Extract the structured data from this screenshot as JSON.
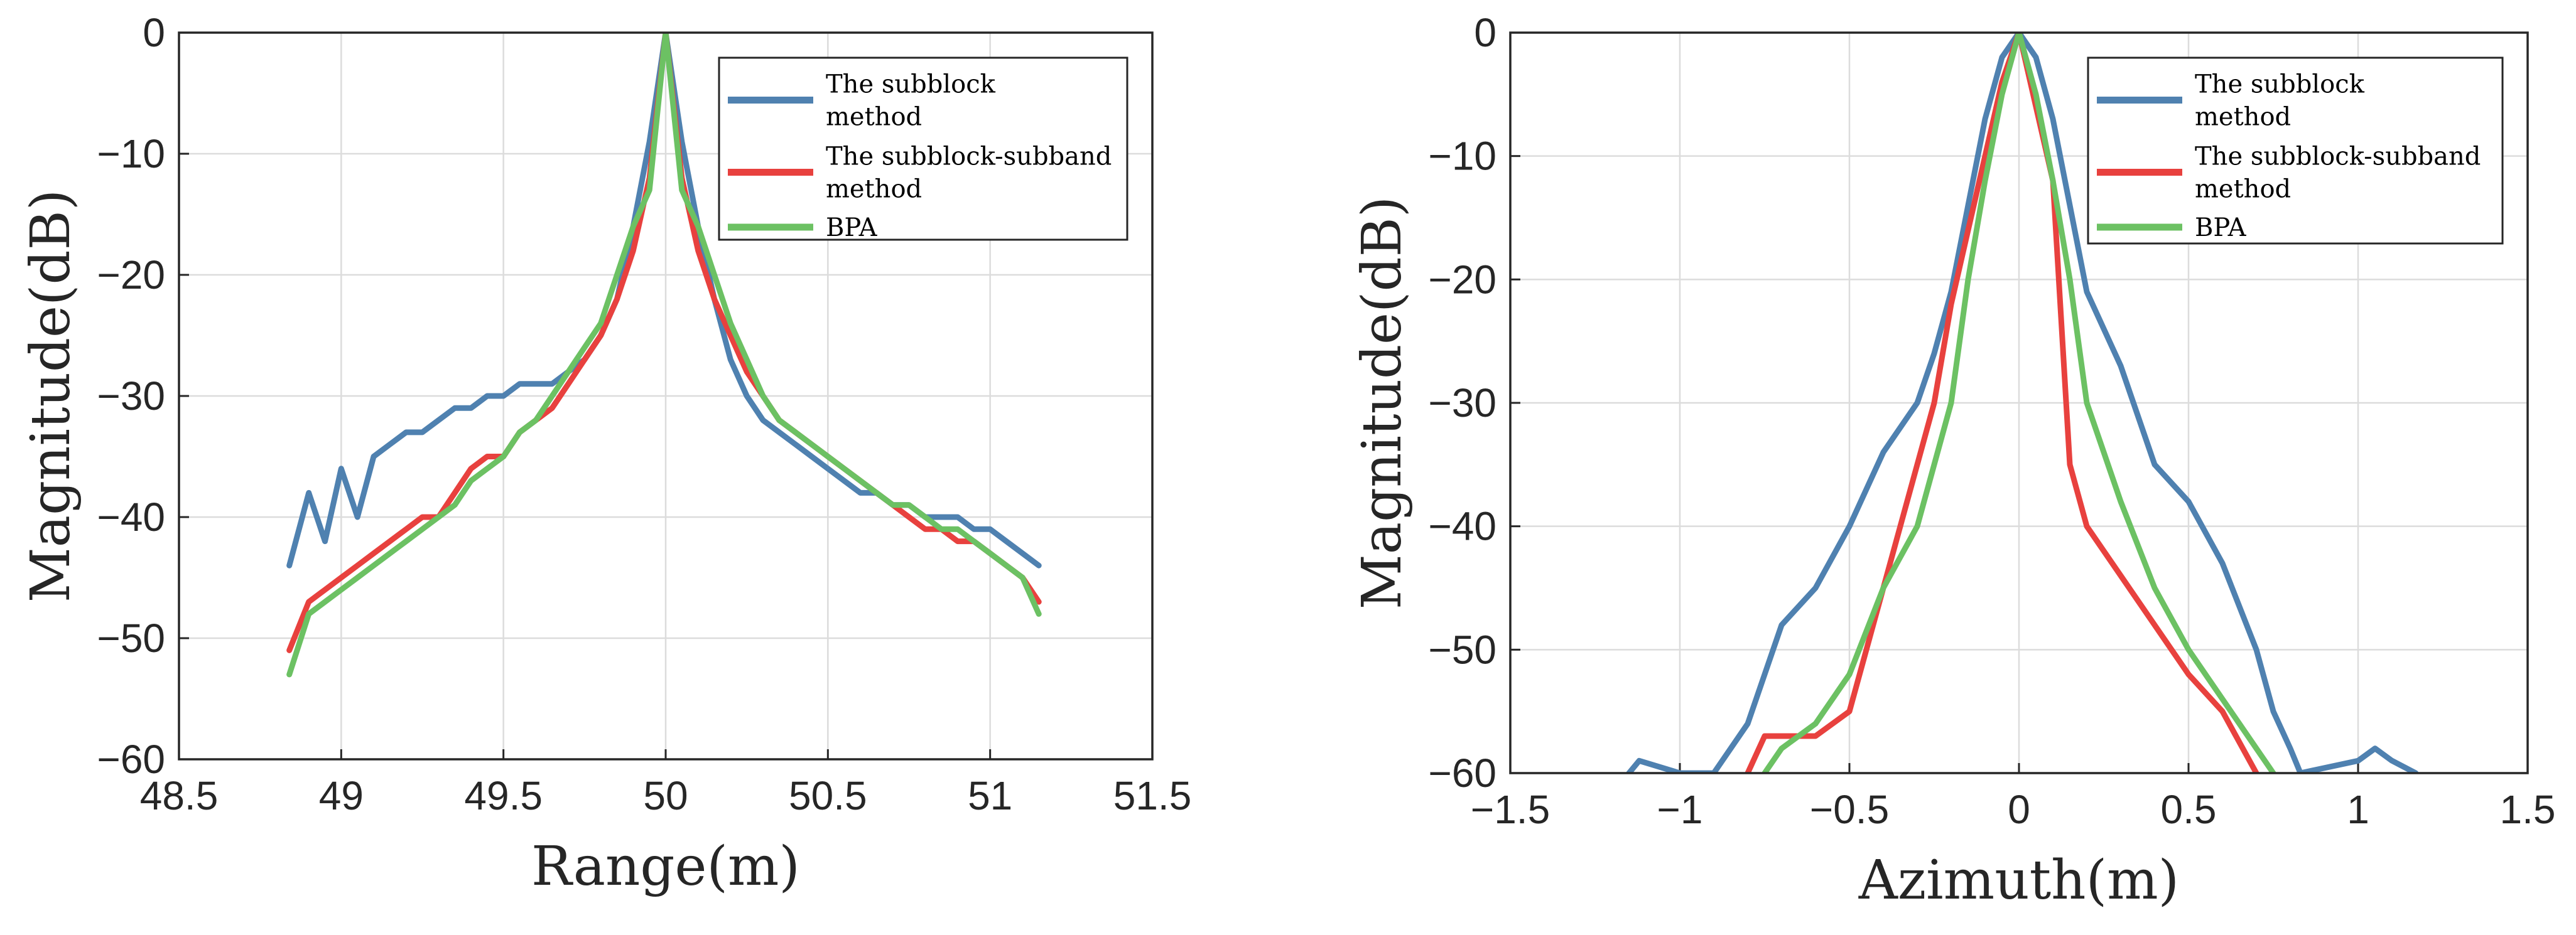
{
  "chart_data": [
    {
      "id": "range",
      "type": "line",
      "title": "",
      "xlabel": "Range(m)",
      "ylabel": "Magnitude(dB)",
      "xlim": [
        48.5,
        51.5
      ],
      "ylim": [
        -60,
        0
      ],
      "xticks": [
        "48.5",
        "49",
        "49.5",
        "50",
        "50.5",
        "51",
        "51.5"
      ],
      "yticks": [
        "0",
        "−10",
        "−20",
        "−30",
        "−40",
        "−50",
        "−60"
      ],
      "grid": true,
      "legend_position": "top-right",
      "series": [
        {
          "name": "The subblock method",
          "color": "#4f81b0",
          "x": [
            48.84,
            48.9,
            48.95,
            49.0,
            49.05,
            49.1,
            49.15,
            49.2,
            49.25,
            49.3,
            49.35,
            49.4,
            49.45,
            49.5,
            49.55,
            49.6,
            49.65,
            49.7,
            49.75,
            49.8,
            49.85,
            49.9,
            49.95,
            50.0,
            50.05,
            50.1,
            50.15,
            50.2,
            50.25,
            50.3,
            50.35,
            50.4,
            50.45,
            50.5,
            50.55,
            50.6,
            50.65,
            50.7,
            50.75,
            50.8,
            50.85,
            50.9,
            50.95,
            51.0,
            51.05,
            51.1,
            51.15
          ],
          "y": [
            -44,
            -38,
            -42,
            -36,
            -40,
            -35,
            -34,
            -33,
            -33,
            -32,
            -31,
            -31,
            -30,
            -30,
            -29,
            -29,
            -29,
            -28,
            -27,
            -25,
            -22,
            -16,
            -9,
            0,
            -9,
            -16,
            -22,
            -27,
            -30,
            -32,
            -33,
            -34,
            -35,
            -36,
            -37,
            -38,
            -38,
            -39,
            -39,
            -40,
            -40,
            -40,
            -41,
            -41,
            -42,
            -43,
            -44
          ]
        },
        {
          "name": "The subblock-subband method",
          "color": "#e8413e",
          "x": [
            48.84,
            48.9,
            48.95,
            49.0,
            49.05,
            49.1,
            49.15,
            49.2,
            49.25,
            49.3,
            49.35,
            49.4,
            49.45,
            49.5,
            49.55,
            49.6,
            49.65,
            49.7,
            49.75,
            49.8,
            49.85,
            49.9,
            49.95,
            50.0,
            50.05,
            50.1,
            50.15,
            50.2,
            50.25,
            50.3,
            50.35,
            50.4,
            50.45,
            50.5,
            50.55,
            50.6,
            50.65,
            50.7,
            50.75,
            50.8,
            50.85,
            50.9,
            50.95,
            51.0,
            51.05,
            51.1,
            51.15
          ],
          "y": [
            -51,
            -47,
            -46,
            -45,
            -44,
            -43,
            -42,
            -41,
            -40,
            -40,
            -38,
            -36,
            -35,
            -35,
            -33,
            -32,
            -31,
            -29,
            -27,
            -25,
            -22,
            -18,
            -12,
            0,
            -12,
            -18,
            -22,
            -25,
            -28,
            -30,
            -32,
            -33,
            -34,
            -35,
            -36,
            -37,
            -38,
            -39,
            -40,
            -41,
            -41,
            -42,
            -42,
            -43,
            -44,
            -45,
            -47
          ]
        },
        {
          "name": "BPA",
          "color": "#6cc163",
          "x": [
            48.84,
            48.9,
            48.95,
            49.0,
            49.05,
            49.1,
            49.15,
            49.2,
            49.25,
            49.3,
            49.35,
            49.4,
            49.45,
            49.5,
            49.55,
            49.6,
            49.65,
            49.7,
            49.75,
            49.8,
            49.85,
            49.9,
            49.95,
            50.0,
            50.05,
            50.1,
            50.15,
            50.2,
            50.25,
            50.3,
            50.35,
            50.4,
            50.45,
            50.5,
            50.55,
            50.6,
            50.65,
            50.7,
            50.75,
            50.8,
            50.85,
            50.9,
            50.95,
            51.0,
            51.05,
            51.1,
            51.15
          ],
          "y": [
            -53,
            -48,
            -47,
            -46,
            -45,
            -44,
            -43,
            -42,
            -41,
            -40,
            -39,
            -37,
            -36,
            -35,
            -33,
            -32,
            -30,
            -28,
            -26,
            -24,
            -20,
            -16,
            -13,
            0,
            -13,
            -16,
            -20,
            -24,
            -27,
            -30,
            -32,
            -33,
            -34,
            -35,
            -36,
            -37,
            -38,
            -39,
            -39,
            -40,
            -41,
            -41,
            -42,
            -43,
            -44,
            -45,
            -48
          ]
        }
      ]
    },
    {
      "id": "azimuth",
      "type": "line",
      "title": "",
      "xlabel": "Azimuth(m)",
      "ylabel": "Magnitude(dB)",
      "xlim": [
        -1.5,
        1.5
      ],
      "ylim": [
        -60,
        0
      ],
      "xticks": [
        "−1.5",
        "−1",
        "−0.5",
        "0",
        "0.5",
        "1",
        "1.5"
      ],
      "yticks": [
        "0",
        "−10",
        "−20",
        "−30",
        "−40",
        "−50",
        "−60"
      ],
      "grid": true,
      "legend_position": "top-right",
      "series": [
        {
          "name": "The subblock method",
          "color": "#4f81b0",
          "x": [
            -1.15,
            -1.12,
            -1.0,
            -0.9,
            -0.8,
            -0.75,
            -0.7,
            -0.6,
            -0.5,
            -0.4,
            -0.3,
            -0.25,
            -0.2,
            -0.15,
            -0.1,
            -0.05,
            0.0,
            0.05,
            0.1,
            0.15,
            0.2,
            0.3,
            0.4,
            0.5,
            0.6,
            0.7,
            0.75,
            0.8,
            0.83,
            1.0,
            1.05,
            1.1,
            1.17
          ],
          "y": [
            -60,
            -59,
            -60,
            -60,
            -56,
            -52,
            -48,
            -45,
            -40,
            -34,
            -30,
            -26,
            -21,
            -14,
            -7,
            -2,
            0,
            -2,
            -7,
            -14,
            -21,
            -27,
            -35,
            -38,
            -43,
            -50,
            -55,
            -58,
            -60,
            -59,
            -58,
            -59,
            -60
          ]
        },
        {
          "name": "The subblock-subband method",
          "color": "#e8413e",
          "x": [
            -0.8,
            -0.75,
            -0.6,
            -0.5,
            -0.4,
            -0.3,
            -0.25,
            -0.2,
            -0.15,
            -0.1,
            -0.05,
            0.0,
            0.05,
            0.1,
            0.15,
            0.2,
            0.3,
            0.4,
            0.5,
            0.6,
            0.7
          ],
          "y": [
            -60,
            -57,
            -57,
            -55,
            -45,
            -35,
            -30,
            -22,
            -16,
            -10,
            -4,
            0,
            -6,
            -12,
            -35,
            -40,
            -44,
            -48,
            -52,
            -55,
            -60
          ]
        },
        {
          "name": "BPA",
          "color": "#6cc163",
          "x": [
            -0.75,
            -0.7,
            -0.6,
            -0.5,
            -0.4,
            -0.3,
            -0.2,
            -0.15,
            -0.1,
            -0.05,
            0.0,
            0.05,
            0.1,
            0.15,
            0.2,
            0.3,
            0.4,
            0.5,
            0.6,
            0.7,
            0.75
          ],
          "y": [
            -60,
            -58,
            -56,
            -52,
            -45,
            -40,
            -30,
            -20,
            -12,
            -5,
            0,
            -5,
            -12,
            -20,
            -30,
            -38,
            -45,
            -50,
            -54,
            -58,
            -60
          ]
        }
      ]
    }
  ]
}
